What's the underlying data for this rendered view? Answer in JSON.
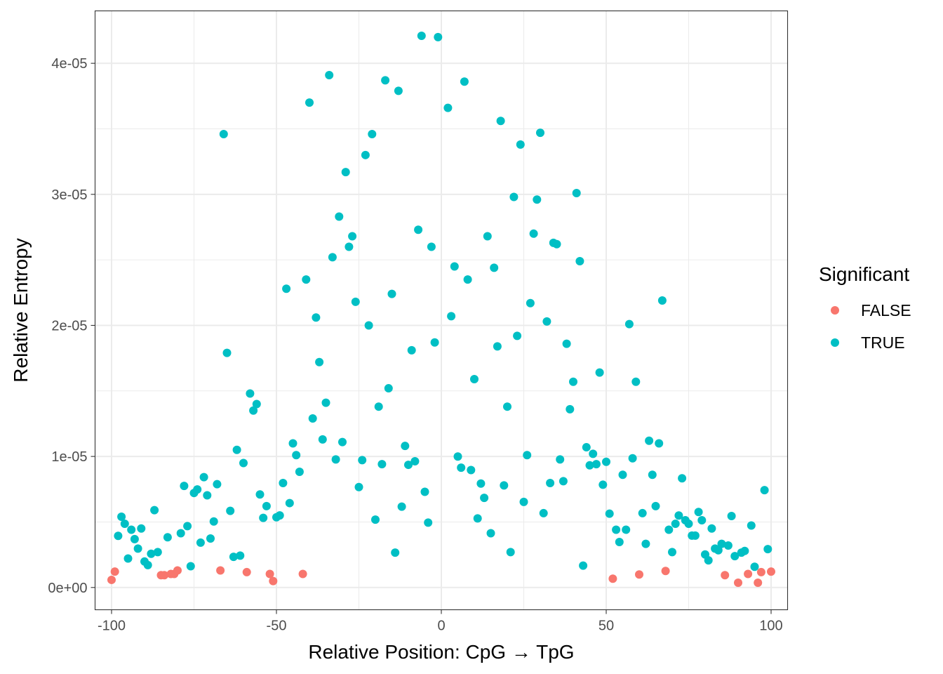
{
  "chart_data": {
    "type": "scatter",
    "xlabel": "Relative Position: CpG → TpG",
    "ylabel": "Relative Entropy",
    "xlim": [
      -105,
      105
    ],
    "ylim": [
      -1.7e-06,
      4.4e-05
    ],
    "x_ticks": [
      -100,
      -50,
      0,
      50,
      100
    ],
    "x_tick_labels": [
      "-100",
      "-50",
      "0",
      "50",
      "100"
    ],
    "y_ticks": [
      0,
      1e-05,
      2e-05,
      3e-05,
      4e-05
    ],
    "y_tick_labels": [
      "0e+00",
      "1e-05",
      "2e-05",
      "3e-05",
      "4e-05"
    ],
    "grid": true,
    "legend": {
      "title": "Significant",
      "placement": "right",
      "entries": [
        {
          "label": "FALSE",
          "color": "#F8766D"
        },
        {
          "label": "TRUE",
          "color": "#00BFC4"
        }
      ]
    },
    "series": [
      {
        "name": "FALSE",
        "color": "#F8766D",
        "points": [
          [
            -100,
            5.8e-07
          ],
          [
            -99,
            1.21e-06
          ],
          [
            -85,
            9.4e-07
          ],
          [
            -84,
            9.4e-07
          ],
          [
            -82,
            1.03e-06
          ],
          [
            -81,
            1.03e-06
          ],
          [
            -80,
            1.3e-06
          ],
          [
            -67,
            1.3e-06
          ],
          [
            -59,
            1.17e-06
          ],
          [
            -52,
            1.03e-06
          ],
          [
            -51,
            4.9e-07
          ],
          [
            -42,
            1.03e-06
          ],
          [
            52,
            6.7e-07
          ],
          [
            60,
            9.9e-07
          ],
          [
            68,
            1.26e-06
          ],
          [
            86,
            9.4e-07
          ],
          [
            90,
            3.6e-07
          ],
          [
            93,
            1.03e-06
          ],
          [
            96,
            3.6e-07
          ],
          [
            97,
            1.17e-06
          ],
          [
            100,
            1.21e-06
          ]
        ]
      },
      {
        "name": "TRUE",
        "color": "#00BFC4",
        "points": [
          [
            -98,
            3.94e-06
          ],
          [
            -97,
            5.4e-06
          ],
          [
            -96,
            4.86e-06
          ],
          [
            -95,
            2.21e-06
          ],
          [
            -94,
            4.41e-06
          ],
          [
            -93,
            3.69e-06
          ],
          [
            -92,
            2.97e-06
          ],
          [
            -91,
            4.5e-06
          ],
          [
            -90,
            1.98e-06
          ],
          [
            -89,
            1.71e-06
          ],
          [
            -88,
            2.57e-06
          ],
          [
            -87,
            5.9e-06
          ],
          [
            -86,
            2.7e-06
          ],
          [
            -83,
            3.83e-06
          ],
          [
            -79,
            4.14e-06
          ],
          [
            -78,
            7.75e-06
          ],
          [
            -77,
            4.68e-06
          ],
          [
            -76,
            1.62e-06
          ],
          [
            -75,
            7.21e-06
          ],
          [
            -74,
            7.48e-06
          ],
          [
            -73,
            3.42e-06
          ],
          [
            -72,
            8.42e-06
          ],
          [
            -71,
            7.03e-06
          ],
          [
            -70,
            3.74e-06
          ],
          [
            -69,
            5.04e-06
          ],
          [
            -68,
            7.88e-06
          ],
          [
            -66,
            3.46e-05
          ],
          [
            -65,
            1.79e-05
          ],
          [
            -64,
            5.85e-06
          ],
          [
            -63,
            2.34e-06
          ],
          [
            -62,
            1.05e-05
          ],
          [
            -61,
            2.43e-06
          ],
          [
            -60,
            9.5e-06
          ],
          [
            -58,
            1.48e-05
          ],
          [
            -57,
            1.35e-05
          ],
          [
            -56,
            1.4e-05
          ],
          [
            -55,
            7.1e-06
          ],
          [
            -54,
            5.31e-06
          ],
          [
            -53,
            6.21e-06
          ],
          [
            -50,
            5.36e-06
          ],
          [
            -49,
            5.5e-06
          ],
          [
            -48,
            7.97e-06
          ],
          [
            -47,
            2.28e-05
          ],
          [
            -46,
            6.44e-06
          ],
          [
            -45,
            1.1e-05
          ],
          [
            -44,
            1.01e-05
          ],
          [
            -43,
            8.83e-06
          ],
          [
            -41,
            2.35e-05
          ],
          [
            -40,
            3.7e-05
          ],
          [
            -39,
            1.29e-05
          ],
          [
            -38,
            2.06e-05
          ],
          [
            -37,
            1.72e-05
          ],
          [
            -36,
            1.13e-05
          ],
          [
            -35,
            1.41e-05
          ],
          [
            -34,
            3.91e-05
          ],
          [
            -33,
            2.52e-05
          ],
          [
            -32,
            9.77e-06
          ],
          [
            -31,
            2.83e-05
          ],
          [
            -30,
            1.11e-05
          ],
          [
            -29,
            3.17e-05
          ],
          [
            -28,
            2.6e-05
          ],
          [
            -27,
            2.68e-05
          ],
          [
            -26,
            2.18e-05
          ],
          [
            -25,
            7.66e-06
          ],
          [
            -24,
            9.72e-06
          ],
          [
            -23,
            3.3e-05
          ],
          [
            -22,
            2e-05
          ],
          [
            -21,
            3.46e-05
          ],
          [
            -20,
            5.18e-06
          ],
          [
            -19,
            1.38e-05
          ],
          [
            -18,
            9.41e-06
          ],
          [
            -17,
            3.87e-05
          ],
          [
            -16,
            1.52e-05
          ],
          [
            -15,
            2.24e-05
          ],
          [
            -14,
            2.66e-06
          ],
          [
            -13,
            3.79e-05
          ],
          [
            -12,
            6.17e-06
          ],
          [
            -11,
            1.08e-05
          ],
          [
            -10,
            9.36e-06
          ],
          [
            -9,
            1.81e-05
          ],
          [
            -8,
            9.63e-06
          ],
          [
            -7,
            2.73e-05
          ],
          [
            -6,
            4.21e-05
          ],
          [
            -5,
            7.3e-06
          ],
          [
            -4,
            4.95e-06
          ],
          [
            -3,
            2.6e-05
          ],
          [
            -2,
            1.87e-05
          ],
          [
            -1,
            4.2e-05
          ],
          [
            2,
            3.66e-05
          ],
          [
            3,
            2.07e-05
          ],
          [
            4,
            2.45e-05
          ],
          [
            5,
            9.99e-06
          ],
          [
            6,
            9.14e-06
          ],
          [
            7,
            3.86e-05
          ],
          [
            8,
            2.35e-05
          ],
          [
            9,
            8.96e-06
          ],
          [
            10,
            1.59e-05
          ],
          [
            11,
            5.27e-06
          ],
          [
            12,
            7.93e-06
          ],
          [
            13,
            6.84e-06
          ],
          [
            14,
            2.68e-05
          ],
          [
            15,
            4.14e-06
          ],
          [
            16,
            2.44e-05
          ],
          [
            17,
            1.84e-05
          ],
          [
            18,
            3.56e-05
          ],
          [
            19,
            7.79e-06
          ],
          [
            20,
            1.38e-05
          ],
          [
            21,
            2.7e-06
          ],
          [
            22,
            2.98e-05
          ],
          [
            23,
            1.92e-05
          ],
          [
            24,
            3.38e-05
          ],
          [
            25,
            6.53e-06
          ],
          [
            26,
            1.01e-05
          ],
          [
            27,
            2.17e-05
          ],
          [
            28,
            2.7e-05
          ],
          [
            29,
            2.96e-05
          ],
          [
            30,
            3.47e-05
          ],
          [
            31,
            5.67e-06
          ],
          [
            32,
            2.03e-05
          ],
          [
            33,
            7.97e-06
          ],
          [
            34,
            2.63e-05
          ],
          [
            35,
            2.62e-05
          ],
          [
            36,
            9.77e-06
          ],
          [
            37,
            8.11e-06
          ],
          [
            38,
            1.86e-05
          ],
          [
            39,
            1.36e-05
          ],
          [
            40,
            1.57e-05
          ],
          [
            41,
            3.01e-05
          ],
          [
            42,
            2.49e-05
          ],
          [
            43,
            1.67e-06
          ],
          [
            44,
            1.07e-05
          ],
          [
            45,
            9.32e-06
          ],
          [
            46,
            1.02e-05
          ],
          [
            47,
            9.41e-06
          ],
          [
            48,
            1.64e-05
          ],
          [
            49,
            7.84e-06
          ],
          [
            50,
            9.59e-06
          ],
          [
            51,
            5.63e-06
          ],
          [
            53,
            4.41e-06
          ],
          [
            54,
            3.47e-06
          ],
          [
            55,
            8.6e-06
          ],
          [
            56,
            4.41e-06
          ],
          [
            57,
            2.01e-05
          ],
          [
            58,
            9.86e-06
          ],
          [
            59,
            1.57e-05
          ],
          [
            61,
            5.67e-06
          ],
          [
            62,
            3.33e-06
          ],
          [
            63,
            1.12e-05
          ],
          [
            64,
            8.6e-06
          ],
          [
            65,
            6.21e-06
          ],
          [
            66,
            1.1e-05
          ],
          [
            67,
            2.19e-05
          ],
          [
            69,
            4.41e-06
          ],
          [
            70,
            2.7e-06
          ],
          [
            71,
            4.86e-06
          ],
          [
            72,
            5.49e-06
          ],
          [
            73,
            8.33e-06
          ],
          [
            74,
            5.13e-06
          ],
          [
            75,
            4.86e-06
          ],
          [
            76,
            3.96e-06
          ],
          [
            77,
            3.96e-06
          ],
          [
            78,
            5.76e-06
          ],
          [
            79,
            5.13e-06
          ],
          [
            80,
            2.52e-06
          ],
          [
            81,
            2.07e-06
          ],
          [
            82,
            4.5e-06
          ],
          [
            83,
            2.97e-06
          ],
          [
            84,
            2.84e-06
          ],
          [
            85,
            3.33e-06
          ],
          [
            87,
            3.2e-06
          ],
          [
            88,
            5.45e-06
          ],
          [
            89,
            2.39e-06
          ],
          [
            91,
            2.66e-06
          ],
          [
            92,
            2.79e-06
          ],
          [
            94,
            4.73e-06
          ],
          [
            95,
            1.58e-06
          ],
          [
            98,
            7.43e-06
          ],
          [
            99,
            2.93e-06
          ]
        ]
      }
    ]
  }
}
